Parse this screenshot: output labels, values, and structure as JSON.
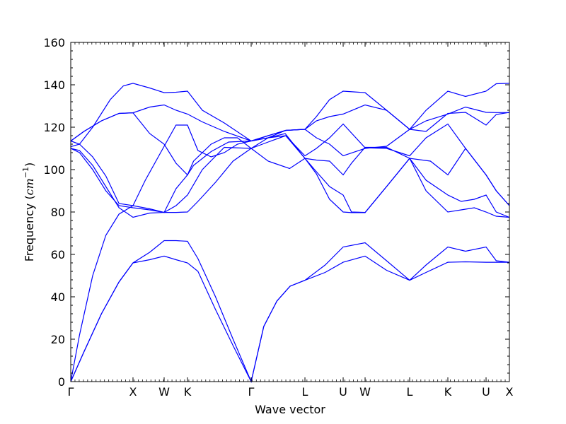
{
  "chart_data": {
    "type": "line",
    "title": "",
    "xlabel": "Wave vector",
    "ylabel_text": "Frequency (",
    "ylabel_unit": "cm",
    "ylabel_exp": "−1",
    "ylabel_close": ")",
    "ylim": [
      0,
      160
    ],
    "xlim": [
      0,
      1
    ],
    "yticks": [
      0,
      20,
      40,
      60,
      80,
      100,
      120,
      140,
      160
    ],
    "grid": false,
    "legend": "none",
    "line_color": "#0000ff",
    "kpoints": [
      {
        "label": "Γ",
        "x": 0.0
      },
      {
        "label": "X",
        "x": 0.1419
      },
      {
        "label": "W",
        "x": 0.2129
      },
      {
        "label": "K",
        "x": 0.2661
      },
      {
        "label": "Γ",
        "x": 0.4113
      },
      {
        "label": "L",
        "x": 0.5339
      },
      {
        "label": "U",
        "x": 0.621
      },
      {
        "label": "W",
        "x": 0.671
      },
      {
        "label": "L",
        "x": 0.7726
      },
      {
        "label": "K",
        "x": 0.8597
      },
      {
        "label": "U",
        "x": 0.9468
      },
      {
        "label": "X",
        "x": 1.0
      }
    ],
    "series": [
      {
        "points": [
          [
            0,
            0
          ],
          [
            0.03,
            14
          ],
          [
            0.07,
            32
          ],
          [
            0.11,
            47
          ],
          [
            0.1419,
            56
          ],
          [
            0.18,
            57.5
          ],
          [
            0.2129,
            59.2
          ],
          [
            0.24,
            57.5
          ],
          [
            0.2661,
            56
          ],
          [
            0.29,
            52
          ],
          [
            0.33,
            34
          ],
          [
            0.37,
            17
          ],
          [
            0.4113,
            0
          ],
          [
            0.44,
            26
          ],
          [
            0.47,
            38
          ],
          [
            0.5,
            45
          ],
          [
            0.5339,
            47.8
          ],
          [
            0.58,
            51.5
          ],
          [
            0.621,
            56.3
          ],
          [
            0.671,
            59.2
          ],
          [
            0.72,
            52.5
          ],
          [
            0.7726,
            47.8
          ],
          [
            0.81,
            51.5
          ],
          [
            0.8597,
            56.3
          ],
          [
            0.9,
            56.5
          ],
          [
            0.9468,
            56.3
          ],
          [
            1.0,
            56.3
          ]
        ]
      },
      {
        "points": [
          [
            0,
            0
          ],
          [
            0.03,
            14
          ],
          [
            0.07,
            32
          ],
          [
            0.11,
            47
          ],
          [
            0.1419,
            56
          ],
          [
            0.18,
            61
          ],
          [
            0.2129,
            66.5
          ],
          [
            0.24,
            66.5
          ],
          [
            0.2661,
            66.2
          ],
          [
            0.29,
            58
          ],
          [
            0.33,
            40
          ],
          [
            0.37,
            20
          ],
          [
            0.4113,
            0
          ],
          [
            0.44,
            26
          ],
          [
            0.47,
            38
          ],
          [
            0.5,
            45
          ],
          [
            0.5339,
            47.8
          ],
          [
            0.58,
            55
          ],
          [
            0.621,
            63.5
          ],
          [
            0.671,
            65.5
          ],
          [
            0.72,
            57
          ],
          [
            0.7726,
            47.8
          ],
          [
            0.81,
            55
          ],
          [
            0.8597,
            63.5
          ],
          [
            0.9,
            61.5
          ],
          [
            0.9468,
            63.5
          ],
          [
            0.97,
            57
          ],
          [
            1.0,
            56.3
          ]
        ]
      },
      {
        "points": [
          [
            0,
            0
          ],
          [
            0.02,
            22
          ],
          [
            0.05,
            50
          ],
          [
            0.08,
            69
          ],
          [
            0.11,
            79
          ],
          [
            0.1419,
            83
          ],
          [
            0.18,
            81.5
          ],
          [
            0.2129,
            79.8
          ],
          [
            0.24,
            79.8
          ],
          [
            0.2661,
            80
          ],
          [
            0.29,
            85
          ],
          [
            0.33,
            94
          ],
          [
            0.37,
            104
          ],
          [
            0.4113,
            110
          ],
          [
            0.45,
            104
          ],
          [
            0.4989,
            100.5
          ],
          [
            0.5339,
            105.3
          ],
          [
            0.56,
            104.5
          ],
          [
            0.59,
            104
          ],
          [
            0.621,
            97.5
          ],
          [
            0.64,
            103
          ],
          [
            0.671,
            110.5
          ],
          [
            0.72,
            110.5
          ],
          [
            0.7726,
            105.3
          ],
          [
            0.82,
            104
          ],
          [
            0.8597,
            97.5
          ],
          [
            0.9,
            110
          ],
          [
            0.9468,
            97.5
          ],
          [
            0.97,
            90
          ],
          [
            1.0,
            83
          ]
        ]
      },
      {
        "points": [
          [
            0,
            110
          ],
          [
            0.02,
            108
          ],
          [
            0.05,
            100
          ],
          [
            0.08,
            90
          ],
          [
            0.11,
            83
          ],
          [
            0.1419,
            82
          ],
          [
            0.18,
            81
          ],
          [
            0.2129,
            79.8
          ],
          [
            0.24,
            83
          ],
          [
            0.2661,
            88
          ],
          [
            0.3,
            100
          ],
          [
            0.35,
            110.5
          ],
          [
            0.4113,
            110
          ],
          [
            0.45,
            115
          ],
          [
            0.4889,
            117
          ],
          [
            0.5339,
            105.3
          ],
          [
            0.56,
            99
          ],
          [
            0.59,
            92
          ],
          [
            0.621,
            88
          ],
          [
            0.64,
            80
          ],
          [
            0.671,
            79.8
          ],
          [
            0.72,
            92
          ],
          [
            0.7726,
            105.3
          ],
          [
            0.81,
            95
          ],
          [
            0.8597,
            88
          ],
          [
            0.89,
            85
          ],
          [
            0.92,
            86
          ],
          [
            0.9468,
            88
          ],
          [
            0.97,
            80
          ],
          [
            1.0,
            77.5
          ]
        ]
      },
      {
        "points": [
          [
            0,
            110
          ],
          [
            0.02,
            109
          ],
          [
            0.05,
            102
          ],
          [
            0.08,
            92
          ],
          [
            0.11,
            82
          ],
          [
            0.1419,
            77.5
          ],
          [
            0.18,
            79.5
          ],
          [
            0.2129,
            79.8
          ],
          [
            0.24,
            91
          ],
          [
            0.2661,
            97.5
          ],
          [
            0.28,
            104
          ],
          [
            0.32,
            112
          ],
          [
            0.35,
            115
          ],
          [
            0.38,
            115
          ],
          [
            0.4113,
            110
          ],
          [
            0.45,
            113
          ],
          [
            0.49,
            116
          ],
          [
            0.5339,
            105.3
          ],
          [
            0.56,
            98
          ],
          [
            0.59,
            86
          ],
          [
            0.621,
            80
          ],
          [
            0.64,
            79.7
          ],
          [
            0.671,
            79.7
          ],
          [
            0.72,
            92
          ],
          [
            0.7726,
            105.3
          ],
          [
            0.81,
            90
          ],
          [
            0.8597,
            80
          ],
          [
            0.89,
            81
          ],
          [
            0.92,
            82
          ],
          [
            0.9468,
            80
          ],
          [
            0.97,
            78
          ],
          [
            1.0,
            77.5
          ]
        ]
      },
      {
        "points": [
          [
            0,
            113.5
          ],
          [
            0.02,
            112
          ],
          [
            0.05,
            106
          ],
          [
            0.08,
            97
          ],
          [
            0.11,
            84
          ],
          [
            0.1419,
            83
          ],
          [
            0.17,
            95
          ],
          [
            0.2129,
            111
          ],
          [
            0.24,
            121
          ],
          [
            0.2661,
            121
          ],
          [
            0.29,
            109
          ],
          [
            0.32,
            106
          ],
          [
            0.35,
            108
          ],
          [
            0.38,
            112
          ],
          [
            0.4113,
            113.5
          ],
          [
            0.45,
            115
          ],
          [
            0.49,
            116
          ],
          [
            0.5339,
            106.5
          ],
          [
            0.56,
            110
          ],
          [
            0.59,
            115
          ],
          [
            0.621,
            121.5
          ],
          [
            0.671,
            110.3
          ],
          [
            0.72,
            110
          ],
          [
            0.7726,
            106.5
          ],
          [
            0.81,
            115
          ],
          [
            0.8597,
            121.5
          ],
          [
            0.9,
            110
          ],
          [
            0.9468,
            97.5
          ],
          [
            0.97,
            90
          ],
          [
            1.0,
            83
          ]
        ]
      },
      {
        "points": [
          [
            0,
            113.5
          ],
          [
            0.03,
            118
          ],
          [
            0.07,
            123
          ],
          [
            0.11,
            126.5
          ],
          [
            0.1419,
            126.8
          ],
          [
            0.18,
            117
          ],
          [
            0.2129,
            112
          ],
          [
            0.24,
            103
          ],
          [
            0.2661,
            97.5
          ],
          [
            0.28,
            102
          ],
          [
            0.32,
            108.5
          ],
          [
            0.36,
            113
          ],
          [
            0.4113,
            113.5
          ],
          [
            0.45,
            116
          ],
          [
            0.49,
            118.5
          ],
          [
            0.5339,
            119
          ],
          [
            0.56,
            123
          ],
          [
            0.59,
            125
          ],
          [
            0.621,
            126.2
          ],
          [
            0.671,
            130.5
          ],
          [
            0.72,
            128
          ],
          [
            0.7726,
            119
          ],
          [
            0.81,
            123
          ],
          [
            0.8597,
            126.2
          ],
          [
            0.9,
            129.5
          ],
          [
            0.9468,
            127
          ],
          [
            0.97,
            126.9
          ],
          [
            1.0,
            126.9
          ]
        ]
      },
      {
        "points": [
          [
            0,
            113.5
          ],
          [
            0.03,
            118
          ],
          [
            0.07,
            123
          ],
          [
            0.11,
            126.5
          ],
          [
            0.1419,
            126.8
          ],
          [
            0.18,
            129.5
          ],
          [
            0.2129,
            130.5
          ],
          [
            0.24,
            128
          ],
          [
            0.2661,
            126.2
          ],
          [
            0.3,
            122.5
          ],
          [
            0.35,
            118
          ],
          [
            0.4113,
            113.5
          ],
          [
            0.45,
            116
          ],
          [
            0.49,
            118.5
          ],
          [
            0.5339,
            119
          ],
          [
            0.56,
            115
          ],
          [
            0.59,
            112
          ],
          [
            0.621,
            106.5
          ],
          [
            0.671,
            110
          ],
          [
            0.72,
            111
          ],
          [
            0.7726,
            119
          ],
          [
            0.81,
            128
          ],
          [
            0.8597,
            137
          ],
          [
            0.9,
            134.5
          ],
          [
            0.9468,
            137
          ],
          [
            0.97,
            140.5
          ],
          [
            1.0,
            140.7
          ]
        ]
      },
      {
        "points": [
          [
            0,
            110.8
          ],
          [
            0.02,
            112
          ],
          [
            0.05,
            120
          ],
          [
            0.09,
            133
          ],
          [
            0.12,
            139.5
          ],
          [
            0.1419,
            140.7
          ],
          [
            0.18,
            138.5
          ],
          [
            0.2129,
            136.3
          ],
          [
            0.24,
            136.5
          ],
          [
            0.2661,
            137
          ],
          [
            0.3,
            128
          ],
          [
            0.35,
            122
          ],
          [
            0.4113,
            113.5
          ],
          [
            0.45,
            115
          ],
          [
            0.49,
            118.5
          ],
          [
            0.5339,
            119
          ],
          [
            0.56,
            125
          ],
          [
            0.59,
            133
          ],
          [
            0.621,
            137
          ],
          [
            0.671,
            136.3
          ],
          [
            0.72,
            128
          ],
          [
            0.7726,
            119
          ],
          [
            0.81,
            118
          ],
          [
            0.8597,
            126.5
          ],
          [
            0.9,
            127
          ],
          [
            0.9468,
            121
          ],
          [
            0.97,
            126
          ],
          [
            1.0,
            127
          ]
        ]
      }
    ]
  }
}
